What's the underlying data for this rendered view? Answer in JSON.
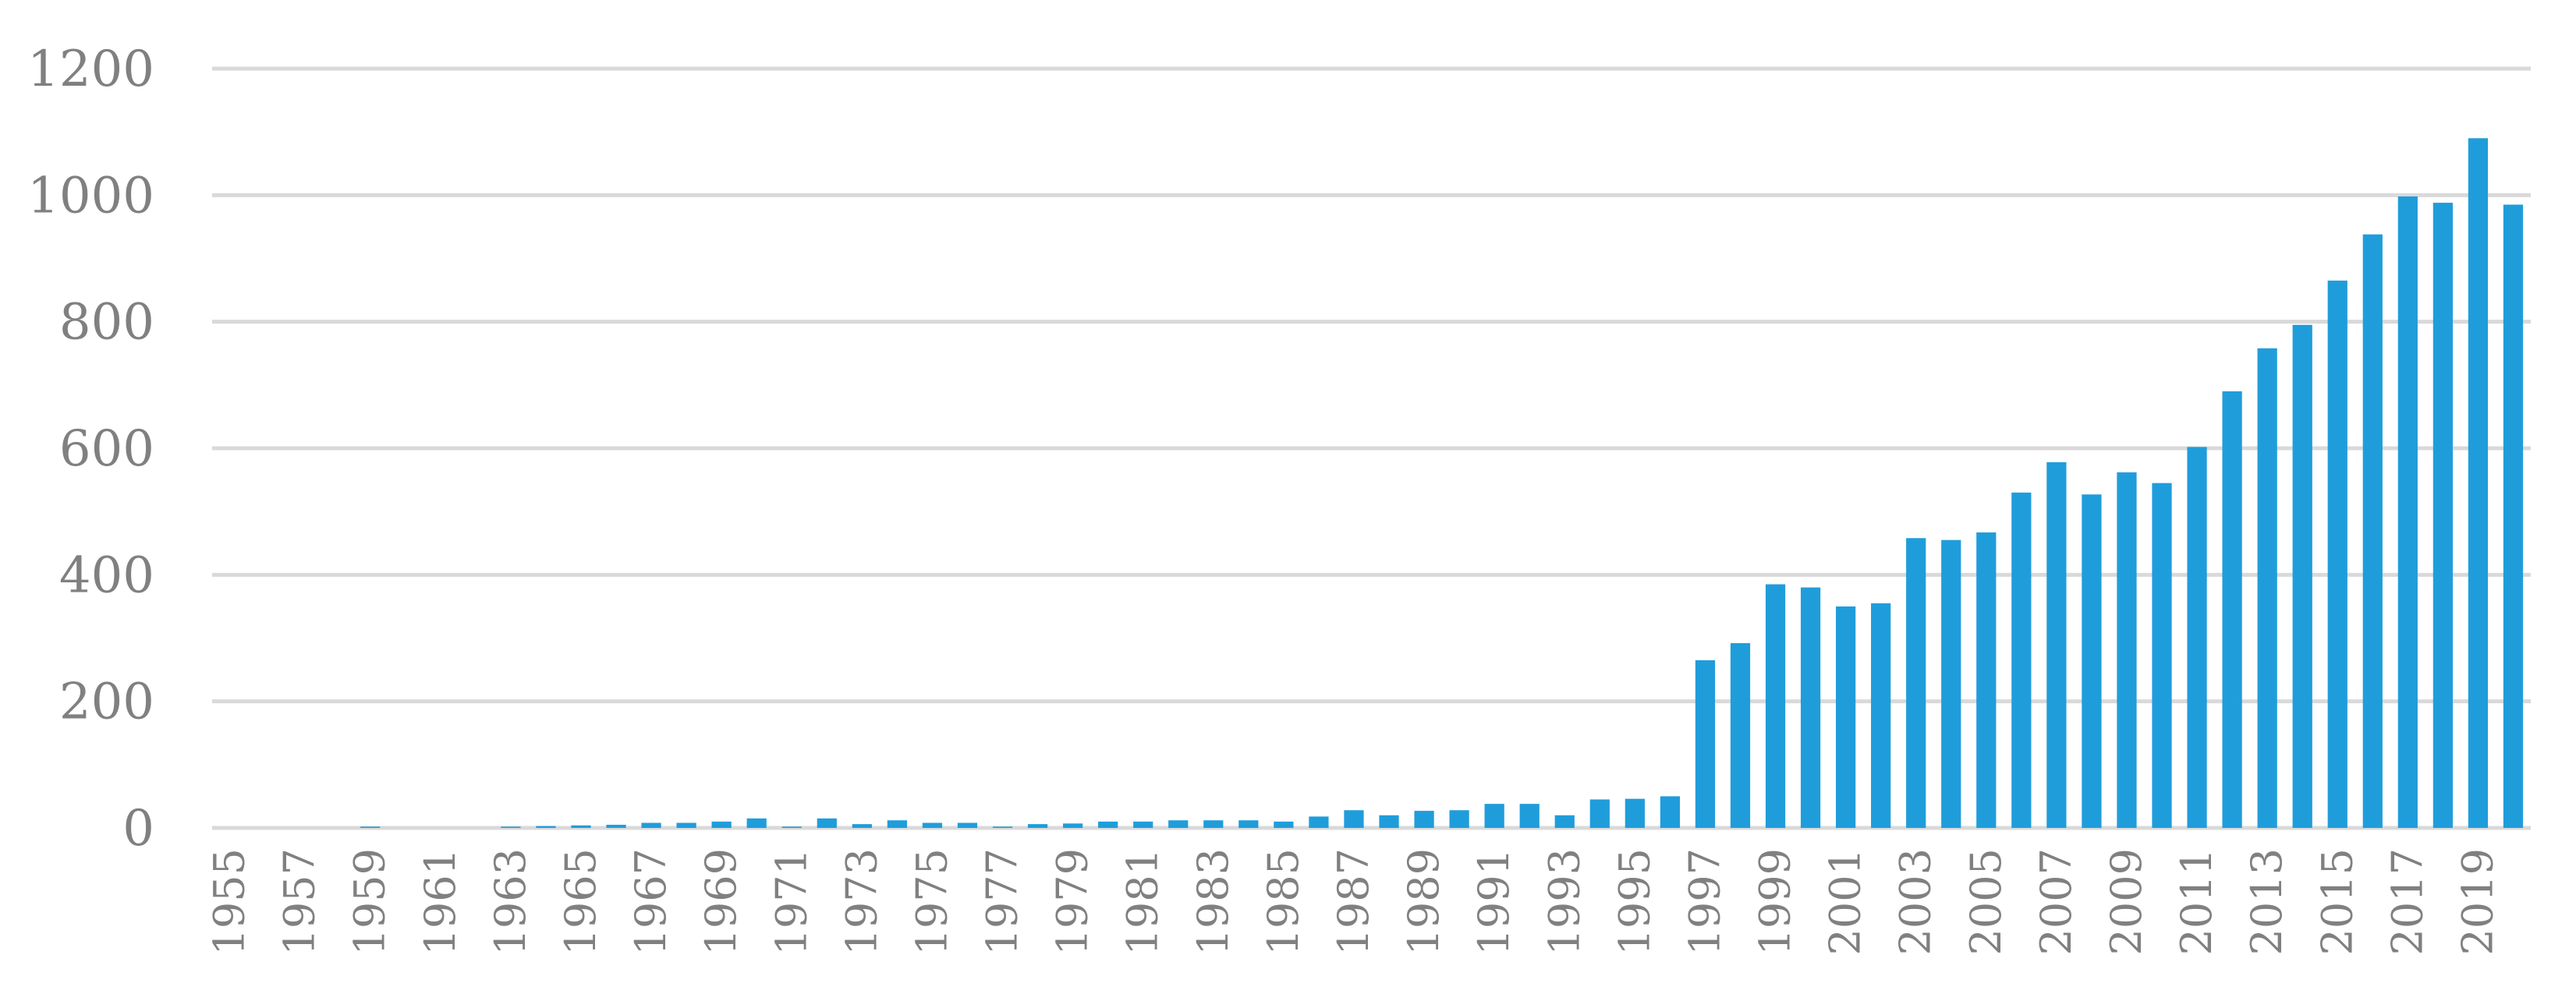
{
  "chart_data": {
    "type": "bar",
    "title": "",
    "xlabel": "",
    "ylabel": "",
    "ylim": [
      0,
      1200
    ],
    "y_ticks": [
      0,
      200,
      400,
      600,
      800,
      1000,
      1200
    ],
    "grid": true,
    "legend": "none",
    "bar_color": "#1f9ddb",
    "grid_color": "#d9d9d9",
    "label_color": "#808080",
    "categories": [
      "1955",
      "1956",
      "1957",
      "1958",
      "1959",
      "1960",
      "1961",
      "1962",
      "1963",
      "1964",
      "1965",
      "1966",
      "1967",
      "1968",
      "1969",
      "1970",
      "1971",
      "1972",
      "1973",
      "1974",
      "1975",
      "1976",
      "1977",
      "1978",
      "1979",
      "1980",
      "1981",
      "1982",
      "1983",
      "1984",
      "1985",
      "1986",
      "1987",
      "1988",
      "1989",
      "1990",
      "1991",
      "1992",
      "1993",
      "1994",
      "1995",
      "1996",
      "1997",
      "1998",
      "1999",
      "2000",
      "2001",
      "2002",
      "2003",
      "2004",
      "2005",
      "2006",
      "2007",
      "2008",
      "2009",
      "2010",
      "2011",
      "2012",
      "2013",
      "2014",
      "2015",
      "2016",
      "2017",
      "2018",
      "2019",
      "2020"
    ],
    "x_tick_labels": [
      "1955",
      "1957",
      "1959",
      "1961",
      "1963",
      "1965",
      "1967",
      "1969",
      "1971",
      "1973",
      "1975",
      "1977",
      "1979",
      "1981",
      "1983",
      "1985",
      "1987",
      "1989",
      "1991",
      "1993",
      "1995",
      "1997",
      "1999",
      "2001",
      "2003",
      "2005",
      "2007",
      "2009",
      "2011",
      "2013",
      "2015",
      "2017",
      "2019"
    ],
    "values": [
      0,
      0,
      0,
      0,
      2,
      0,
      0,
      0,
      2,
      3,
      4,
      5,
      8,
      8,
      10,
      15,
      2,
      15,
      6,
      12,
      8,
      8,
      2,
      6,
      7,
      10,
      10,
      12,
      12,
      12,
      10,
      18,
      28,
      20,
      27,
      28,
      38,
      38,
      20,
      45,
      46,
      50,
      265,
      292,
      385,
      380,
      350,
      355,
      458,
      455,
      467,
      530,
      578,
      527,
      562,
      545,
      602,
      690,
      758,
      795,
      865,
      938,
      998,
      988,
      1090,
      985
    ]
  }
}
